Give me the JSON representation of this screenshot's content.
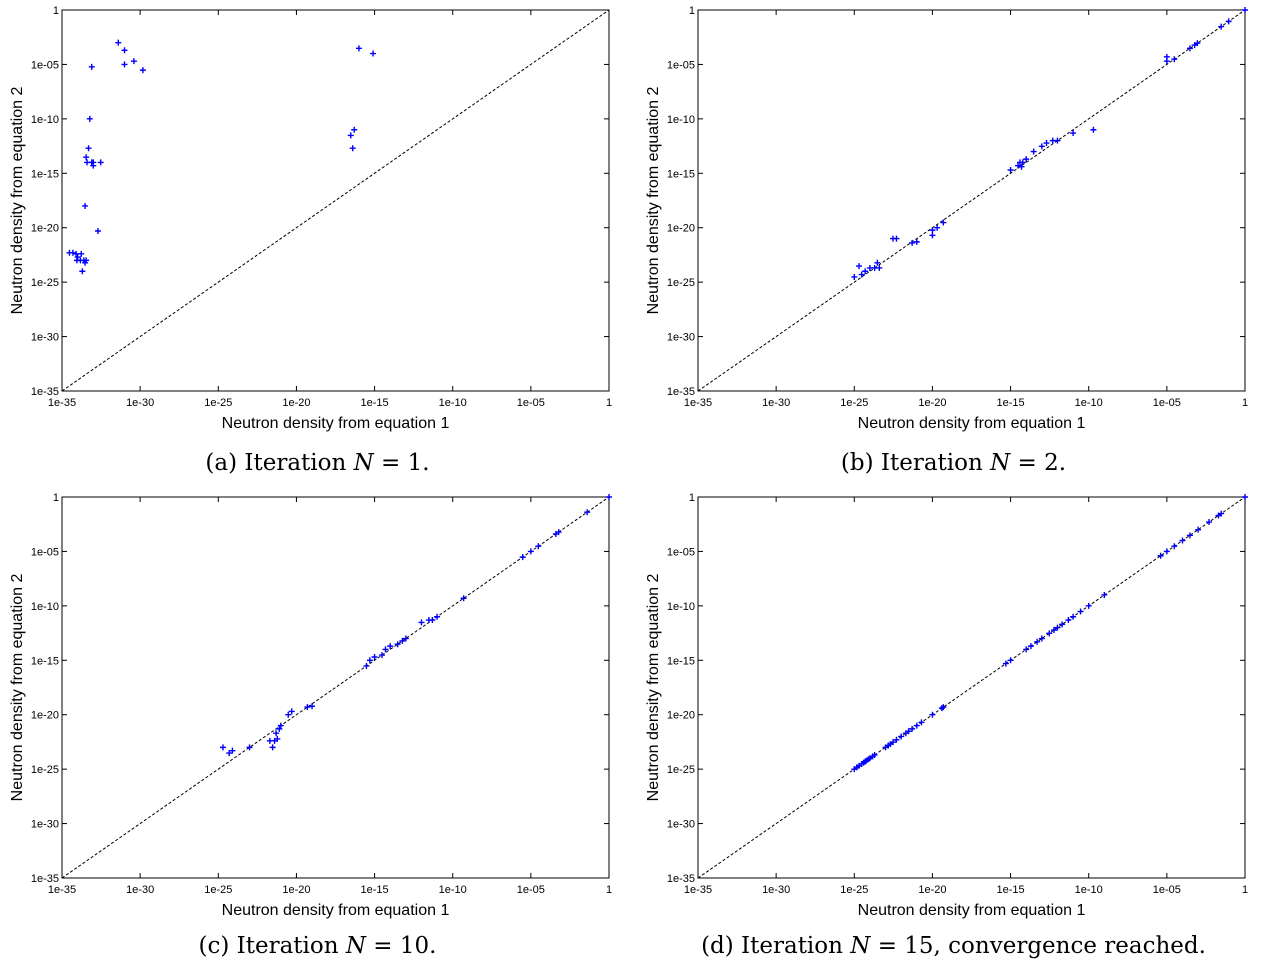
{
  "figure": {
    "xlabel": "Neutron density from equation 1",
    "ylabel": "Neutron density from equation 2",
    "tick_labels": [
      "1e-35",
      "1e-30",
      "1e-25",
      "1e-20",
      "1e-15",
      "1e-10",
      "1e-05",
      "1"
    ],
    "marker_color": "#0000ff",
    "diagonal_color": "#000000"
  },
  "panels": [
    {
      "caption_prefix": "(a) Iteration ",
      "caption_var": "N",
      "caption_rest": " = 1."
    },
    {
      "caption_prefix": "(b) Iteration ",
      "caption_var": "N",
      "caption_rest": " = 2."
    },
    {
      "caption_prefix": "(c) Iteration ",
      "caption_var": "N",
      "caption_rest": " = 10."
    },
    {
      "caption_prefix": "(d) Iteration ",
      "caption_var": "N",
      "caption_rest": " = 15, convergence reached."
    }
  ],
  "chart_data": [
    {
      "type": "scatter",
      "scale": "log",
      "xlim": [
        1e-35,
        1
      ],
      "ylim": [
        1e-35,
        1
      ],
      "xlabel": "Neutron density from equation 1",
      "ylabel": "Neutron density from equation 2",
      "reference_line": "y = x",
      "x": [
        3e-35,
        5e-35,
        8e-35,
        1e-34,
        9e-35,
        1.5e-34,
        1.7e-34,
        2e-34,
        2.5e-34,
        3e-34,
        3.5e-34,
        3e-34,
        3.5e-34,
        4e-34,
        5e-34,
        6e-34,
        8e-34,
        8e-34,
        1e-33,
        1e-33,
        3e-33,
        2e-33,
        4e-32,
        1e-31,
        1.5e-30,
        4e-31,
        1e-31,
        1e-16,
        3e-17,
        4e-17,
        5e-17,
        8e-16
      ],
      "y": [
        5e-23,
        5e-23,
        4e-23,
        2e-23,
        1e-23,
        1e-23,
        4e-23,
        1e-24,
        1e-23,
        6e-24,
        1e-23,
        1e-18,
        3e-14,
        1e-14,
        2e-13,
        1e-10,
        6e-06,
        1e-14,
        1e-14,
        5e-15,
        1e-14,
        5e-21,
        0.001,
        1e-05,
        3e-06,
        2e-05,
        0.0002,
        0.0003,
        3e-12,
        2e-13,
        1e-11,
        0.0001
      ]
    },
    {
      "type": "scatter",
      "scale": "log",
      "xlim": [
        1e-35,
        1
      ],
      "ylim": [
        1e-35,
        1
      ],
      "xlabel": "Neutron density from equation 1",
      "ylabel": "Neutron density from equation 2",
      "reference_line": "y = x",
      "x": [
        1e-25,
        3e-25,
        2e-25,
        5e-25,
        1e-24,
        2e-24,
        3e-24,
        4e-24,
        3e-23,
        1e-21,
        5e-22,
        5e-23,
        1e-20,
        1e-20,
        2e-20,
        5e-20,
        1e-15,
        3e-15,
        4e-15,
        5e-15,
        6e-15,
        1e-14,
        3e-14,
        1e-13,
        2e-13,
        5e-13,
        1e-12,
        1e-11,
        2e-10,
        1e-05,
        1e-05,
        3e-05,
        0.0003,
        0.0006,
        0.0009,
        0.03,
        0.09,
        1
      ],
      "y": [
        3e-25,
        5e-25,
        3e-24,
        1e-24,
        2e-24,
        2e-24,
        6e-24,
        2e-24,
        1e-21,
        5e-22,
        4e-22,
        1e-21,
        2e-21,
        6e-21,
        1e-20,
        3e-20,
        2e-15,
        5e-15,
        1e-14,
        4e-15,
        1e-14,
        2e-14,
        1e-13,
        3e-13,
        6e-13,
        1e-12,
        1e-12,
        5e-12,
        1e-11,
        2e-05,
        5e-05,
        3e-05,
        0.0003,
        0.0006,
        0.0009,
        0.03,
        0.09,
        1
      ]
    },
    {
      "type": "scatter",
      "scale": "log",
      "xlim": [
        1e-35,
        1
      ],
      "ylim": [
        1e-35,
        1
      ],
      "xlabel": "Neutron density from equation 1",
      "ylabel": "Neutron density from equation 2",
      "reference_line": "y = x",
      "x": [
        2e-25,
        5e-25,
        8e-25,
        1e-23,
        2e-22,
        3e-22,
        4e-22,
        5e-22,
        6e-22,
        8e-22,
        1e-21,
        3e-21,
        5e-21,
        5e-20,
        1e-19,
        3e-16,
        5e-16,
        1e-15,
        3e-15,
        5e-15,
        1e-14,
        3e-14,
        6e-14,
        1e-13,
        1e-12,
        3e-12,
        5e-12,
        1e-11,
        5e-10,
        3e-06,
        1e-05,
        3e-05,
        0.0004,
        0.0006,
        0.04,
        1
      ],
      "y": [
        1e-23,
        3e-24,
        5e-24,
        1e-23,
        4e-23,
        1e-23,
        4e-23,
        2e-22,
        6e-23,
        5e-22,
        1e-21,
        1e-20,
        2e-20,
        5e-20,
        6e-20,
        3e-16,
        1e-15,
        2e-15,
        3e-15,
        1e-14,
        2e-14,
        3e-14,
        6e-14,
        1e-13,
        3e-12,
        5e-12,
        5e-12,
        1e-11,
        5e-10,
        3e-06,
        1e-05,
        3e-05,
        0.0004,
        0.0006,
        0.04,
        1
      ]
    },
    {
      "type": "scatter",
      "scale": "log",
      "xlim": [
        1e-35,
        1
      ],
      "ylim": [
        1e-35,
        1
      ],
      "xlabel": "Neutron density from equation 1",
      "ylabel": "Neutron density from equation 2",
      "reference_line": "y = x",
      "x": [
        1e-25,
        1.5e-25,
        2e-25,
        3e-25,
        4e-25,
        5e-25,
        6e-25,
        8e-25,
        1e-24,
        1.5e-24,
        2e-24,
        1e-23,
        1.5e-23,
        2e-23,
        3e-23,
        5e-23,
        1e-22,
        2e-22,
        3e-22,
        5e-22,
        1e-21,
        2e-21,
        1e-20,
        4e-20,
        5e-20,
        5e-16,
        1e-15,
        1e-14,
        2e-14,
        5e-14,
        1e-13,
        3e-13,
        6e-13,
        1e-12,
        2e-12,
        5e-12,
        1e-11,
        3e-11,
        1e-10,
        1e-09,
        4e-06,
        1e-05,
        3e-05,
        0.0001,
        0.0003,
        0.001,
        0.005,
        0.02,
        0.03,
        1
      ],
      "y": [
        1e-25,
        1.5e-25,
        2e-25,
        3e-25,
        4e-25,
        5e-25,
        6e-25,
        8e-25,
        1e-24,
        1.5e-24,
        2e-24,
        1e-23,
        1.5e-23,
        2e-23,
        3e-23,
        5e-23,
        1e-22,
        2e-22,
        3e-22,
        5e-22,
        1e-21,
        2e-21,
        1e-20,
        4e-20,
        5e-20,
        5e-16,
        1e-15,
        1e-14,
        2e-14,
        5e-14,
        1e-13,
        3e-13,
        6e-13,
        1e-12,
        2e-12,
        5e-12,
        1e-11,
        3e-11,
        1e-10,
        1e-09,
        4e-06,
        1e-05,
        3e-05,
        0.0001,
        0.0003,
        0.001,
        0.005,
        0.02,
        0.03,
        1
      ]
    }
  ]
}
